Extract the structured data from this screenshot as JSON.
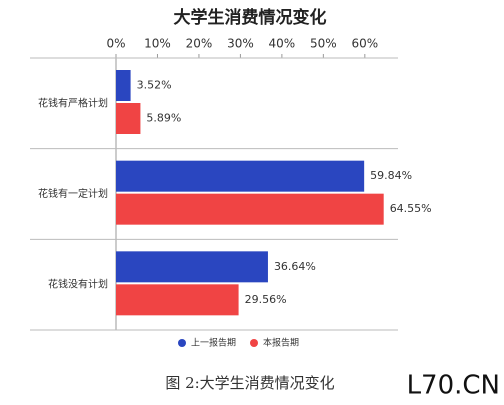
{
  "chart_data": {
    "type": "hbar",
    "title": "大学生消费情况变化",
    "categories": [
      "花钱有严格计划",
      "花钱有一定计划",
      "花钱没有计划"
    ],
    "series": [
      {
        "name": "上一报告期",
        "color": "#2a46c0",
        "values": [
          3.52,
          59.84,
          36.64
        ],
        "value_labels": [
          "3.52%",
          "59.84%",
          "36.64%"
        ]
      },
      {
        "name": "本报告期",
        "color": "#f04444",
        "values": [
          5.89,
          64.55,
          29.56
        ],
        "value_labels": [
          "5.89%",
          "64.55%",
          "29.56%"
        ]
      }
    ],
    "xlim": [
      0,
      68
    ],
    "xticks": [
      {
        "value": 0,
        "label": "0%"
      },
      {
        "value": 10,
        "label": "10%"
      },
      {
        "value": 20,
        "label": "20%"
      },
      {
        "value": 30,
        "label": "30%"
      },
      {
        "value": 40,
        "label": "40%"
      },
      {
        "value": 50,
        "label": "50%"
      },
      {
        "value": 60,
        "label": "60%"
      }
    ],
    "legend": "bottom"
  },
  "caption": "图 2:大学生消费情况变化",
  "watermark": "L70.CN"
}
